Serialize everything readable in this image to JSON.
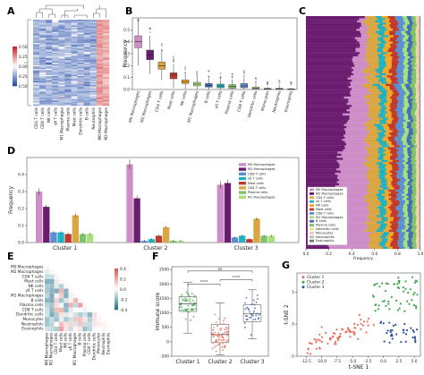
{
  "panels": {
    "A": "A",
    "B": "B",
    "C": "C",
    "D": "D",
    "E": "E",
    "F": "F",
    "G": "G"
  },
  "colors": {
    "M0 Macrophages": "#cd8ec8",
    "M2 Macrophages": "#6a1d6e",
    "CD4 T cells": "#d9a641",
    "Mast cells": "#c0392b",
    "NK cells": "#f5a623",
    "B cells": "#3f6fb5",
    "γδ T cells": "#1fb3c1",
    "Plasma cells": "#7fc26b",
    "CD8 T cells": "#5a8fd1",
    "Dendritic cells": "#e8e27a",
    "Monocytes": "#f3c1d6",
    "Neutrophils": "#c7b8a0",
    "Eosinophils": "#777777",
    "M1 Macrophages": "#a6e07a",
    "Cluster 1": "#e8705a",
    "Cluster 2": "#3ca64a",
    "Cluster 3": "#2f4ea2"
  },
  "chart_data": [
    {
      "panel": "A",
      "type": "heatmap",
      "columns": [
        "CD4 T cells",
        "CD8 T cells",
        "NK cells",
        "γδ T cells",
        "M1 Macrophages",
        "Plasma cells",
        "Mast cells",
        "Dendritic cells",
        "B cells",
        "Neutrophils",
        "M0 Macrophages",
        "M2 Macrophages"
      ],
      "colorbar_ticks": [
        "0.50",
        "0.25",
        "0.00",
        "0.25",
        "0.50"
      ]
    },
    {
      "panel": "B",
      "type": "box",
      "ylabel": "Frequency",
      "ylim": [
        0,
        0.6
      ],
      "yticks": [
        "0.0",
        "0.1",
        "0.2",
        "0.3",
        "0.4",
        "0.5"
      ],
      "categories": [
        "M0 Macrophages",
        "M2 Macrophages",
        "CD4 T cells",
        "Mast cells",
        "NK cells",
        "M1 Macrophages",
        "B cells",
        "γδ T cells",
        "Plasma cells",
        "CD8 T cells",
        "Dendritic cells",
        "Monocytes",
        "Neutrophils",
        "Eosinophils"
      ],
      "median": [
        0.4,
        0.29,
        0.2,
        0.12,
        0.065,
        0.045,
        0.035,
        0.03,
        0.025,
        0.03,
        0.01,
        0.005,
        0.005,
        0.002
      ],
      "q1": [
        0.35,
        0.25,
        0.17,
        0.09,
        0.05,
        0.03,
        0.02,
        0.015,
        0.01,
        0.015,
        0.005,
        0.002,
        0.002,
        0.0
      ],
      "q3": [
        0.45,
        0.33,
        0.23,
        0.14,
        0.08,
        0.06,
        0.05,
        0.045,
        0.04,
        0.05,
        0.02,
        0.01,
        0.01,
        0.005
      ]
    },
    {
      "panel": "C",
      "type": "stacked-bar",
      "xlabel": "Frequency",
      "xticks": [
        "0.0",
        "0.2",
        "0.4",
        "0.6",
        "0.8",
        "1.0"
      ],
      "legend": [
        "M0 Macrophages",
        "M2 Macrophages",
        "CD4 T cells",
        "γδ T cells",
        "NK cells",
        "Mast cells",
        "CD8 T cells",
        "M1 Macrophages",
        "B cells",
        "Plasma cells",
        "Dendritic cells",
        "Monocytes",
        "Neutrophils",
        "Eosinophils"
      ]
    },
    {
      "panel": "D",
      "type": "bar",
      "ylabel": "Frequency",
      "ylim": [
        0,
        0.5
      ],
      "yticks": [
        "0.0",
        "0.1",
        "0.2",
        "0.3",
        "0.4"
      ],
      "categories": [
        "Cluster 1",
        "Cluster 2",
        "Cluster 3"
      ],
      "series": [
        {
          "name": "M0 Macrophages",
          "values": [
            0.3,
            0.46,
            0.34
          ]
        },
        {
          "name": "M2 Macrophages",
          "values": [
            0.21,
            0.26,
            0.35
          ]
        },
        {
          "name": "CD8 T cells",
          "values": [
            0.06,
            0.01,
            0.03
          ]
        },
        {
          "name": "γδ T cells",
          "values": [
            0.06,
            0.02,
            0.04
          ]
        },
        {
          "name": "Mast cells",
          "values": [
            0.05,
            0.04,
            0.02
          ]
        },
        {
          "name": "CD4 T cells",
          "values": [
            0.16,
            0.09,
            0.14
          ]
        },
        {
          "name": "Plasma cells",
          "values": [
            0.05,
            0.01,
            0.04
          ]
        },
        {
          "name": "M1 Macrophages",
          "values": [
            0.05,
            0.01,
            0.04
          ]
        }
      ],
      "legend": [
        "M0 Macrophages",
        "M2 Macrophages",
        "CD8 T cells",
        "γδ T cells",
        "Mast cells",
        "CD4 T cells",
        "Plasma cells",
        "M1 Macrophages"
      ]
    },
    {
      "panel": "E",
      "type": "heatmap",
      "labels": [
        "M0 Macrophages",
        "M2 Macrophages",
        "CD4 T cells",
        "Mast cells",
        "NK cells",
        "γδ T cells",
        "M1 Macrophages",
        "B cells",
        "Plasma cells",
        "CD8 T cells",
        "Dendritic cells",
        "Monocytes",
        "Neutrophils",
        "Eosinophils"
      ],
      "colorbar_ticks": [
        "0.4",
        "0.2",
        "0.0",
        "-0.2",
        "-0.4"
      ]
    },
    {
      "panel": "F",
      "type": "box",
      "ylabel": "Immune score",
      "ylim": [
        -500,
        2600
      ],
      "yticks": [
        "2500",
        "2000",
        "1500",
        "1000",
        "500",
        "0",
        "-500"
      ],
      "categories": [
        "Cluster 1",
        "Cluster 2",
        "Cluster 3"
      ],
      "median": [
        1320,
        250,
        980
      ],
      "q1": [
        1050,
        -30,
        700
      ],
      "q3": [
        1560,
        600,
        1280
      ],
      "whisker_low": [
        300,
        -450,
        100
      ],
      "whisker_high": [
        2050,
        1350,
        1800
      ],
      "annotations": [
        "ns",
        "****",
        "****"
      ]
    },
    {
      "panel": "G",
      "type": "scatter",
      "xlabel": "t-SNE 1",
      "ylabel": "t-SNE 2",
      "xlim": [
        -14,
        6
      ],
      "ylim": [
        -5,
        8
      ],
      "xticks": [
        "-12.5",
        "-10.0",
        "-7.5",
        "-5.0",
        "-2.5",
        "0.0",
        "2.5",
        "5.0"
      ],
      "yticks": [
        "5",
        "0",
        "-5"
      ],
      "legend": [
        "Cluster 1",
        "Cluster 2",
        "Cluster 3"
      ]
    }
  ]
}
